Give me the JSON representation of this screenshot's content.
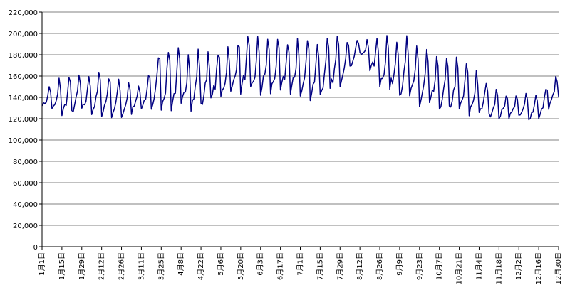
{
  "chart_data": {
    "type": "line",
    "title": "",
    "xlabel": "",
    "ylabel": "",
    "ylim": [
      0,
      220000
    ],
    "yticks": [
      0,
      20000,
      40000,
      60000,
      80000,
      100000,
      120000,
      140000,
      160000,
      180000,
      200000,
      220000
    ],
    "ytick_labels": [
      "0",
      "20,000",
      "40,000",
      "60,000",
      "80,000",
      "100,000",
      "120,000",
      "140,000",
      "160,000",
      "180,000",
      "200,000",
      "220,000"
    ],
    "x_day_count": 365,
    "x_tick_labels": [
      "1月1日",
      "1月15日",
      "1月29日",
      "2月12日",
      "2月26日",
      "3月11日",
      "3月25日",
      "4月8日",
      "4月22日",
      "5月6日",
      "5月20日",
      "6月3日",
      "6月17日",
      "7月1日",
      "7月15日",
      "7月29日",
      "8月12日",
      "8月26日",
      "9月9日",
      "9月23日",
      "10月7日",
      "10月21日",
      "11月4日",
      "11月18日",
      "12月2日",
      "12月16日",
      "12月30日"
    ],
    "grid": "horizontal",
    "legend": "none",
    "series": [
      {
        "color": "#000080",
        "envelope": [
          [
            0,
            132000,
            146000
          ],
          [
            14,
            122000,
            160000
          ],
          [
            28,
            125000,
            162000
          ],
          [
            42,
            122000,
            164000
          ],
          [
            56,
            120000,
            158000
          ],
          [
            70,
            128000,
            150000
          ],
          [
            84,
            128000,
            190000
          ],
          [
            98,
            127000,
            186000
          ],
          [
            112,
            127000,
            186000
          ],
          [
            126,
            138000,
            185000
          ],
          [
            140,
            143000,
            197000
          ],
          [
            154,
            142000,
            197000
          ],
          [
            168,
            143000,
            194000
          ],
          [
            182,
            136000,
            200000
          ],
          [
            196,
            138000,
            194000
          ],
          [
            210,
            150000,
            198000
          ],
          [
            224,
            180000,
            195000
          ],
          [
            238,
            150000,
            198000
          ],
          [
            252,
            140000,
            201000
          ],
          [
            266,
            128000,
            192000
          ],
          [
            280,
            128000,
            176000
          ],
          [
            294,
            125000,
            178000
          ],
          [
            308,
            120000,
            165000
          ],
          [
            322,
            120000,
            145000
          ],
          [
            336,
            120000,
            143000
          ],
          [
            350,
            118000,
            145000
          ],
          [
            364,
            138000,
            162000
          ]
        ]
      }
    ]
  }
}
